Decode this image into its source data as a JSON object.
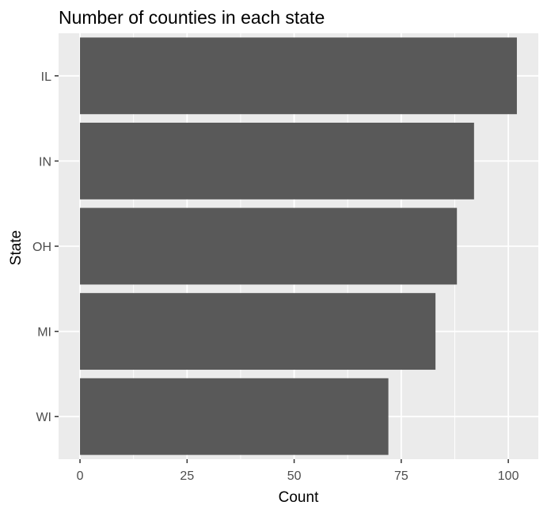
{
  "chart_data": {
    "type": "bar",
    "orientation": "horizontal",
    "title": "Number of counties in each state",
    "xlabel": "Count",
    "ylabel": "State",
    "categories": [
      "IL",
      "IN",
      "OH",
      "MI",
      "WI"
    ],
    "values": [
      102,
      92,
      88,
      83,
      72
    ],
    "xlim": [
      -5,
      107
    ],
    "x_ticks": [
      "0",
      "25",
      "50",
      "75",
      "100"
    ],
    "x_tick_values": [
      0,
      25,
      50,
      75,
      100
    ],
    "grid": true,
    "colors": {
      "bar": "#595959",
      "panel": "#ebebeb",
      "grid": "#ffffff",
      "tick_text": "#4d4d4d",
      "tick_mark": "#333333"
    }
  }
}
